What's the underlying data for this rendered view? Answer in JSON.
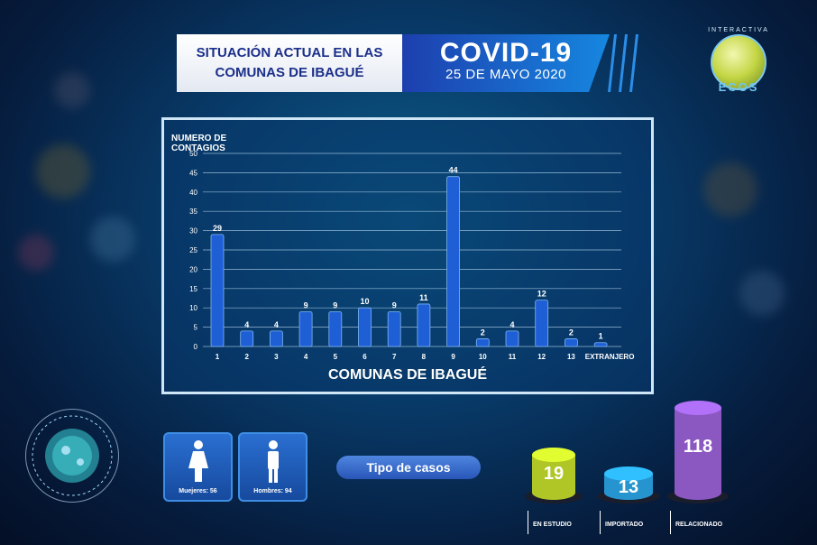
{
  "header": {
    "title_line1": "SITUACIÓN ACTUAL EN LAS",
    "title_line2": "COMUNAS DE IBAGUÉ",
    "covid_title": "COVID-19",
    "date": "25 DE MAYO 2020"
  },
  "logo": {
    "sub": "INTERACTIVA",
    "name": "ECOS"
  },
  "chart_data": {
    "type": "bar",
    "title": "",
    "ylabel": "NUMERO DE CONTAGIOS",
    "xlabel": "COMUNAS DE IBAGUÉ",
    "categories": [
      "1",
      "2",
      "3",
      "4",
      "5",
      "6",
      "7",
      "8",
      "9",
      "10",
      "11",
      "12",
      "13",
      "EXTRANJERO"
    ],
    "values": [
      29,
      4,
      4,
      9,
      9,
      10,
      9,
      11,
      44,
      2,
      4,
      12,
      2,
      1
    ],
    "ylim": [
      0,
      50
    ],
    "yticks": [
      0,
      5,
      10,
      15,
      20,
      25,
      30,
      35,
      40,
      45,
      50
    ],
    "grid": true,
    "bar_color": "#1f5fd6"
  },
  "gender": {
    "women_label": "Muejeres: 56",
    "men_label": "Hombres: 94"
  },
  "case_types": {
    "title": "Tipo de casos",
    "items": [
      {
        "label": "EN ESTUDIO",
        "value": "19",
        "color": "#c4dc2b"
      },
      {
        "label": "IMPORTADO",
        "value": "13",
        "color": "#2aa6e6"
      },
      {
        "label": "RELACIONADO",
        "value": "118",
        "color": "#9a62d8"
      }
    ]
  }
}
